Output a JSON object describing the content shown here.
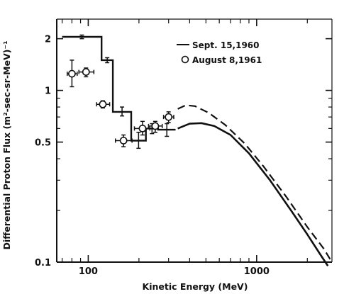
{
  "chart_data": {
    "type": "line",
    "xlabel": "Kinetic Energy (MeV)",
    "ylabel": "Differential Proton Flux (m²-sec-sr-MeV)⁻¹",
    "x_scale": "log",
    "y_scale": "log",
    "xlim": [
      65,
      2800
    ],
    "ylim": [
      0.1,
      2.6
    ],
    "x_ticks": [
      100,
      1000
    ],
    "x_tick_labels": [
      "100",
      "1000"
    ],
    "y_ticks": [
      0.1,
      0.5,
      1,
      2
    ],
    "y_tick_labels": [
      "0.1",
      "0.5",
      "1",
      "2"
    ],
    "legend": {
      "placement": "top-center",
      "entries": [
        {
          "label": "Sept. 15,1960",
          "marker": "line"
        },
        {
          "label": "August 8,1961",
          "marker": "circle"
        }
      ]
    },
    "series": [
      {
        "name": "Sept. 15,1960",
        "style": "step",
        "steps": [
          {
            "x0": 70,
            "x1": 120,
            "y": 2.05,
            "err": [
              2.0,
              2.1
            ]
          },
          {
            "x0": 120,
            "x1": 140,
            "y": 1.5,
            "err": [
              1.45,
              1.55
            ]
          },
          {
            "x0": 140,
            "x1": 180,
            "y": 0.75,
            "err": [
              0.71,
              0.8
            ]
          },
          {
            "x0": 180,
            "x1": 220,
            "y": 0.51,
            "err": [
              0.46,
              0.57
            ]
          },
          {
            "x0": 220,
            "x1": 260,
            "y": 0.6,
            "err": [
              0.56,
              0.64
            ]
          },
          {
            "x0": 260,
            "x1": 330,
            "y": 0.59,
            "err": [
              0.54,
              0.64
            ]
          }
        ]
      },
      {
        "name": "August 8,1961",
        "style": "points",
        "points": [
          {
            "x": 80,
            "y": 1.25,
            "xerr": [
              75,
              86
            ],
            "yerr": [
              1.05,
              1.5
            ]
          },
          {
            "x": 97,
            "y": 1.28,
            "xerr": [
              88,
              108
            ],
            "yerr": [
              1.2,
              1.35
            ]
          },
          {
            "x": 122,
            "y": 0.83,
            "xerr": [
              112,
              134
            ],
            "yerr": [
              0.79,
              0.87
            ]
          },
          {
            "x": 162,
            "y": 0.51,
            "xerr": [
              145,
              182
            ],
            "yerr": [
              0.47,
              0.55
            ]
          },
          {
            "x": 210,
            "y": 0.6,
            "xerr": [
              188,
              232
            ],
            "yerr": [
              0.55,
              0.66
            ]
          },
          {
            "x": 250,
            "y": 0.62,
            "xerr": [
              228,
              275
            ],
            "yerr": [
              0.57,
              0.66
            ]
          },
          {
            "x": 300,
            "y": 0.7,
            "xerr": [
              280,
              322
            ],
            "yerr": [
              0.65,
              0.75
            ]
          }
        ]
      },
      {
        "style": "solid-curve",
        "x": [
          340,
          400,
          470,
          560,
          700,
          900,
          1200,
          1600,
          2000,
          2400,
          2650
        ],
        "y": [
          0.6,
          0.64,
          0.645,
          0.62,
          0.55,
          0.43,
          0.3,
          0.2,
          0.145,
          0.11,
          0.095
        ]
      },
      {
        "style": "dashed-curve",
        "x": [
          340,
          380,
          430,
          520,
          650,
          850,
          1100,
          1500,
          2000,
          2500,
          2800
        ],
        "y": [
          0.78,
          0.82,
          0.81,
          0.74,
          0.63,
          0.49,
          0.36,
          0.24,
          0.16,
          0.12,
          0.1
        ]
      }
    ]
  }
}
